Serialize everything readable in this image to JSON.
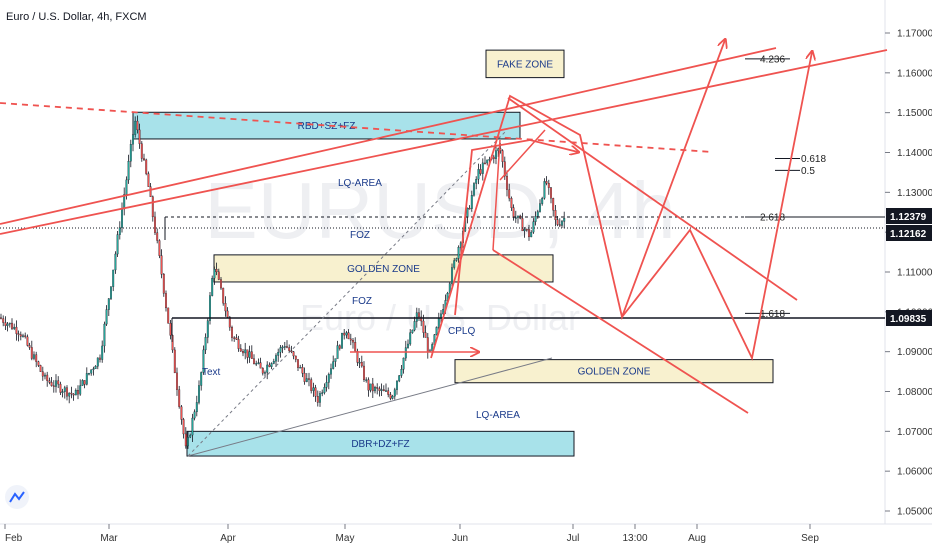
{
  "chart_data": {
    "type": "candlestick",
    "title": "Euro / U.S. Dollar, 4h, FXCM",
    "watermark": {
      "symbol": "EURUSD, 4h",
      "name": "Euro / U.S. Dollar"
    },
    "x_ticks": [
      "Feb",
      "Mar",
      "Apr",
      "May",
      "Jun",
      "Jul",
      "13:00",
      "Aug",
      "Sep"
    ],
    "y_ticks": [
      "1.17000",
      "1.16000",
      "1.15000",
      "1.14000",
      "1.13000",
      "1.12000",
      "1.11000",
      "1.10000",
      "1.09000",
      "1.08000",
      "1.07000",
      "1.06000",
      "1.05000"
    ],
    "ylim": [
      1.046,
      1.182
    ],
    "price_badges": [
      {
        "label": "1.12379",
        "value": 1.12379,
        "color": "#131722"
      },
      {
        "label": "1.12162",
        "value": 1.12162,
        "color": "#131722"
      },
      {
        "label": "1.09835",
        "value": 1.09835,
        "color": "#131722"
      }
    ],
    "zones": [
      {
        "label": "RBD+SZ+FZ",
        "fill": "#a8e2ea",
        "y_top": 1.1501,
        "y_bottom": 1.1434
      },
      {
        "label": "GOLDEN ZONE",
        "fill": "#f8f1cf",
        "y_top": 1.1143,
        "y_bottom": 1.1075
      },
      {
        "label": "GOLDEN ZONE",
        "fill": "#f8f1cf",
        "y_top": 1.088,
        "y_bottom": 1.0822
      },
      {
        "label": "DBR+DZ+FZ",
        "fill": "#a8e2ea",
        "y_top": 1.07,
        "y_bottom": 1.0638
      },
      {
        "label": "FAKE ZONE",
        "fill": "#f8f1cf",
        "y_top": 1.1657,
        "y_bottom": 1.1588
      }
    ],
    "annotations": [
      "LQ-AREA",
      "FOZ",
      "FOZ",
      "CPLQ",
      "Text",
      "LQ-AREA"
    ],
    "fib_levels": [
      {
        "label": "4.236",
        "value": 1.1635
      },
      {
        "label": "0.618",
        "value": 1.1385
      },
      {
        "label": "0.5",
        "value": 1.1355
      },
      {
        "label": "2.618",
        "value": 1.1238
      },
      {
        "label": "1.618",
        "value": 1.0996
      }
    ],
    "colors": {
      "up": "#26a69a",
      "down": "#ef5350",
      "wick": "#131722",
      "projection": "#ef5350",
      "axis": "#787b86"
    }
  }
}
